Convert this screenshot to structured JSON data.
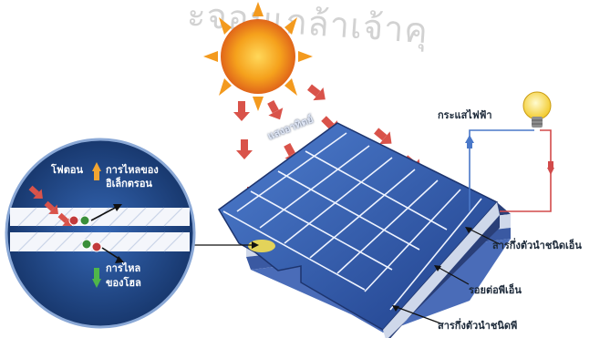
{
  "watermark": "ะจอมเกล้าเจ้าคุ",
  "labels": {
    "sunlight": "แสงอาทิตย์",
    "current": "กระแสไฟฟ้า",
    "n_type": "สารกึ่งตัวนำชนิดเอ็น",
    "junction": "รอยต่อพีเอ็น",
    "p_type": "สารกึ่งตัวนำชนิดพี",
    "photon": "โฟตอน",
    "electron_flow_1": "การไหลของ",
    "electron_flow_2": "อิเล็กตรอน",
    "hole_flow_1": "การไหล",
    "hole_flow_2": "ของโฮล"
  },
  "colors": {
    "panel_blue": "#2f56a8",
    "panel_grid": "#eef3ff",
    "arrow_red": "#d9534a",
    "circuit_red": "#d24a4a",
    "circuit_blue": "#4a78c8",
    "sun": "#f5a11c",
    "bulb": "#f7d94a",
    "zoom_bg": "#234c8e"
  }
}
